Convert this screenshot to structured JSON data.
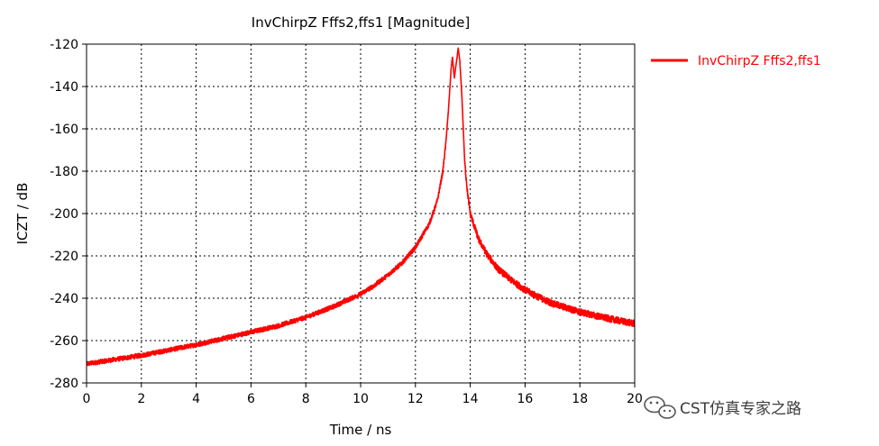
{
  "chart_data": {
    "type": "line",
    "title": "InvChirpZ Fffs2,ffs1 [Magnitude]",
    "xlabel": "Time / ns",
    "ylabel": "ICZT / dB",
    "xlim": [
      0,
      20
    ],
    "ylim": [
      -280,
      -120
    ],
    "xticks": [
      0,
      2,
      4,
      6,
      8,
      10,
      12,
      14,
      16,
      18,
      20
    ],
    "yticks": [
      -120,
      -140,
      -160,
      -180,
      -200,
      -220,
      -240,
      -260,
      -280
    ],
    "grid": true,
    "legend_position": "right",
    "series": [
      {
        "name": "InvChirpZ Fffs2,ffs1",
        "color": "#ff0000",
        "x": [
          0,
          1,
          2,
          3,
          4,
          5,
          6,
          7,
          8,
          9,
          10,
          10.5,
          11,
          11.5,
          12,
          12.5,
          12.8,
          13.0,
          13.1,
          13.2,
          13.3,
          13.35,
          13.42,
          13.5,
          13.56,
          13.62,
          13.7,
          13.8,
          13.9,
          14.0,
          14.3,
          14.6,
          15,
          15.5,
          16,
          16.5,
          17,
          18,
          19,
          20
        ],
        "y": [
          -271,
          -269,
          -267,
          -264.5,
          -262,
          -259,
          -256,
          -253,
          -249,
          -244,
          -238,
          -234,
          -229,
          -223.5,
          -216,
          -205,
          -194,
          -180,
          -168,
          -152,
          -132,
          -126,
          -136,
          -128,
          -122,
          -128,
          -146,
          -176,
          -190,
          -200,
          -212,
          -219,
          -226,
          -231.5,
          -236,
          -239.5,
          -242.5,
          -246.5,
          -249.5,
          -252
        ]
      }
    ]
  },
  "watermark": {
    "text": "CST仿真专家之路",
    "icon": "wechat-icon"
  }
}
